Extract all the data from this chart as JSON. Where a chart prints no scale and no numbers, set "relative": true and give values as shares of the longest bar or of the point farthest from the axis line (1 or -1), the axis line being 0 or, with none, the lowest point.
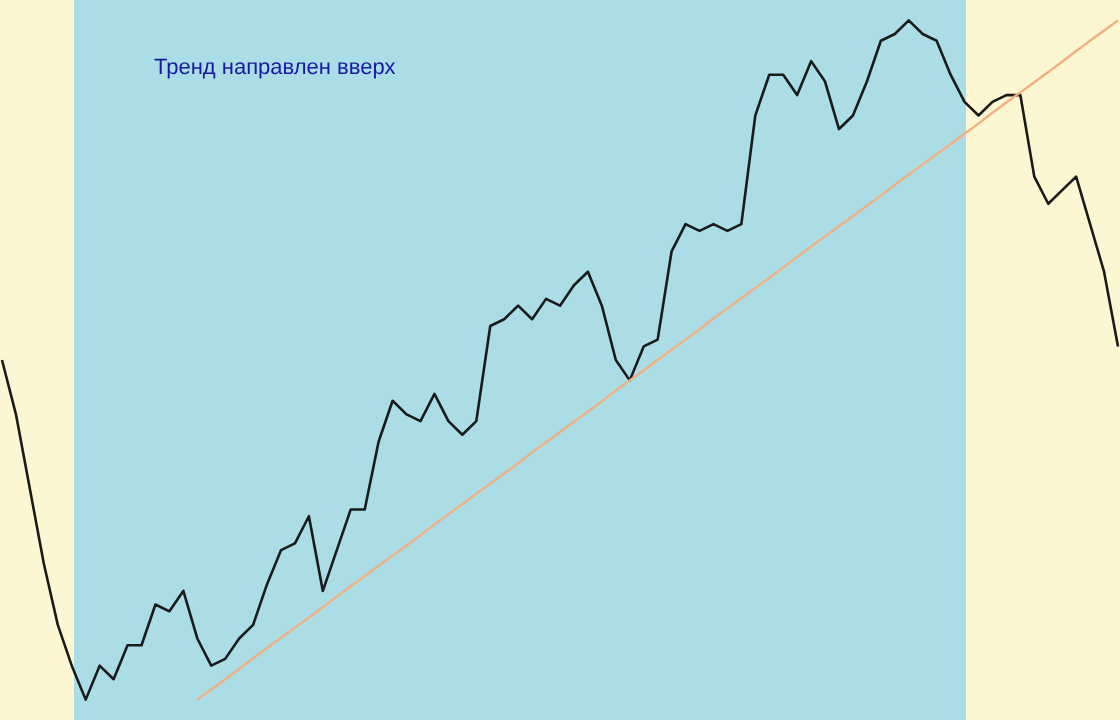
{
  "chart_data": {
    "type": "line",
    "relative": true,
    "tick_labels": false,
    "categories": [
      null,
      null,
      null,
      null,
      null,
      null,
      null,
      null,
      null,
      null,
      null,
      null,
      null,
      null,
      null,
      null,
      null,
      null,
      null,
      null,
      null,
      null,
      null,
      null,
      null,
      null,
      null,
      null,
      null,
      null,
      null,
      null,
      null,
      null,
      null,
      null,
      null,
      null,
      null,
      null,
      null,
      null,
      null,
      null,
      null,
      null,
      null,
      null,
      null,
      null,
      null,
      null,
      null,
      null,
      null,
      null,
      null,
      null,
      null,
      null,
      null,
      null,
      null,
      null,
      null,
      null,
      null,
      null,
      null,
      null,
      null,
      null,
      null,
      null,
      null,
      null,
      null,
      null,
      null,
      null,
      null
    ],
    "series": [
      {
        "color": "#1a1a1a",
        "values": [
          0.5,
          0.42,
          0.31,
          0.2,
          0.11,
          0.05,
          0,
          0.05,
          0.03,
          0.08,
          0.08,
          0.14,
          0.13,
          0.16,
          0.09,
          0.05,
          0.06,
          0.09,
          0.11,
          0.17,
          0.22,
          0.23,
          0.27,
          0.16,
          0.22,
          0.28,
          0.28,
          0.38,
          0.44,
          0.42,
          0.41,
          0.45,
          0.41,
          0.39,
          0.41,
          0.55,
          0.56,
          0.58,
          0.56,
          0.59,
          0.58,
          0.61,
          0.63,
          0.58,
          0.5,
          0.47,
          0.52,
          0.53,
          0.66,
          0.7,
          0.69,
          0.7,
          0.69,
          0.7,
          0.86,
          0.92,
          0.92,
          0.89,
          0.94,
          0.91,
          0.84,
          0.86,
          0.91,
          0.97,
          0.98,
          1,
          0.98,
          0.97,
          0.92,
          0.88,
          0.86,
          0.88,
          0.89,
          0.89,
          0.77,
          0.73,
          0.75,
          0.77,
          0.7,
          0.63,
          0.52
        ]
      },
      {
        "type": "line",
        "color": "#f0b080",
        "values": [
          null,
          null,
          null,
          null,
          null,
          null,
          null,
          null,
          null,
          null,
          null,
          null,
          null,
          null,
          0,
          0.015,
          0.03,
          0.045,
          0.061,
          0.076,
          0.091,
          0.106,
          0.121,
          0.136,
          0.152,
          0.167,
          0.182,
          0.197,
          0.212,
          0.227,
          0.242,
          0.258,
          0.273,
          0.288,
          0.303,
          0.318,
          0.333,
          0.348,
          0.364,
          0.379,
          0.394,
          0.409,
          0.424,
          0.439,
          0.455,
          0.47,
          0.485,
          0.5,
          0.515,
          0.53,
          0.545,
          0.561,
          0.576,
          0.591,
          0.606,
          0.621,
          0.636,
          0.652,
          0.667,
          0.682,
          0.697,
          0.712,
          0.727,
          0.742,
          0.758,
          0.773,
          0.788,
          0.803,
          0.818,
          0.833,
          0.848,
          0.864,
          0.879,
          0.894,
          0.909,
          0.924,
          0.939,
          0.955,
          0.97,
          0.985,
          1
        ]
      }
    ],
    "annotations": [
      "Тренд направлен вверх"
    ]
  }
}
